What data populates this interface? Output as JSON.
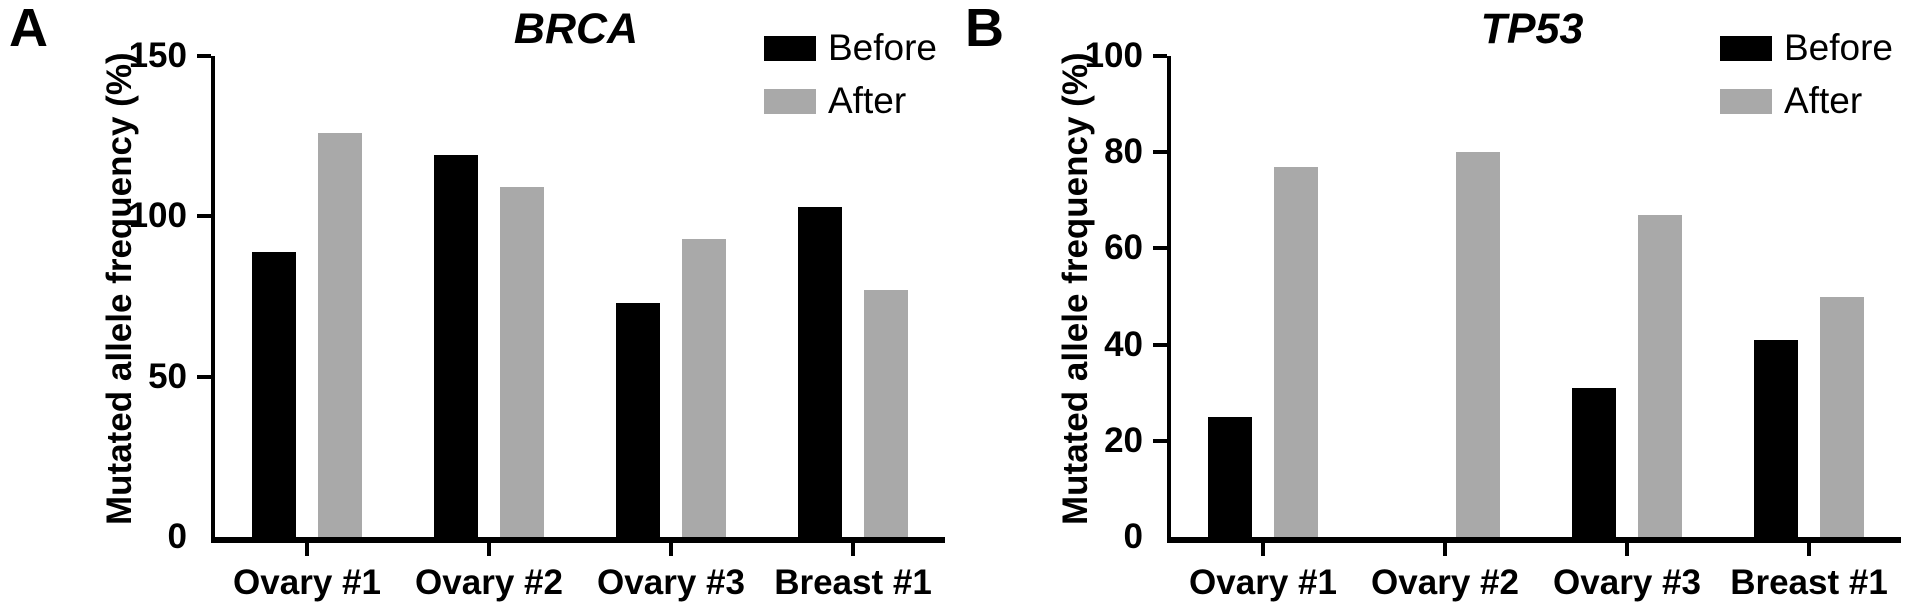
{
  "figure": {
    "background": "#ffffff",
    "axis_color": "#000000"
  },
  "chart_data": [
    {
      "type": "bar",
      "panel_label": "A",
      "title": "BRCA",
      "ylabel": "Mutated allele frequency (%)",
      "xlabel": "",
      "ylim": [
        0,
        150
      ],
      "yticks": [
        0,
        50,
        100,
        150
      ],
      "grid": false,
      "legend_position": "top-right",
      "categories": [
        "Ovary #1",
        "Ovary #2",
        "Ovary #3",
        "Breast #1"
      ],
      "series": [
        {
          "name": "Before",
          "color": "#000000",
          "values": [
            89,
            119,
            73,
            103
          ]
        },
        {
          "name": "After",
          "color": "#a9a9a9",
          "values": [
            126,
            109,
            93,
            77
          ]
        }
      ]
    },
    {
      "type": "bar",
      "panel_label": "B",
      "title": "TP53",
      "ylabel": "Mutated allele frequency (%)",
      "xlabel": "",
      "ylim": [
        0,
        100
      ],
      "yticks": [
        0,
        20,
        40,
        60,
        80,
        100
      ],
      "grid": false,
      "legend_position": "top-right",
      "categories": [
        "Ovary #1",
        "Ovary #2",
        "Ovary #3",
        "Breast #1"
      ],
      "series": [
        {
          "name": "Before",
          "color": "#000000",
          "values": [
            25,
            0,
            31,
            41
          ]
        },
        {
          "name": "After",
          "color": "#a9a9a9",
          "values": [
            77,
            80,
            67,
            50
          ]
        }
      ]
    }
  ]
}
